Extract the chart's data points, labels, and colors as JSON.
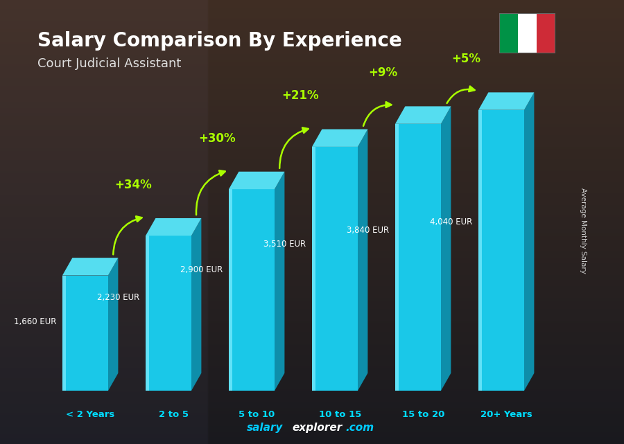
{
  "title": "Salary Comparison By Experience",
  "subtitle": "Court Judicial Assistant",
  "categories": [
    "< 2 Years",
    "2 to 5",
    "5 to 10",
    "10 to 15",
    "15 to 20",
    "20+ Years"
  ],
  "values": [
    1660,
    2230,
    2900,
    3510,
    3840,
    4040
  ],
  "labels": [
    "1,660 EUR",
    "2,230 EUR",
    "2,900 EUR",
    "3,510 EUR",
    "3,840 EUR",
    "4,040 EUR"
  ],
  "pct_changes": [
    "+34%",
    "+30%",
    "+21%",
    "+9%",
    "+5%"
  ],
  "bar_color_face": "#1ac8e8",
  "bar_color_side": "#0e8eaa",
  "bar_color_top": "#55ddf0",
  "bar_highlight": "#80eeff",
  "ylabel": "Average Monthly Salary",
  "title_color": "#ffffff",
  "subtitle_color": "#e0e0e0",
  "label_color": "#ffffff",
  "pct_color": "#aaff00",
  "cat_color": "#00ddff",
  "bg_top": "#1a2030",
  "bg_bottom": "#3a2a1a",
  "footer_salary_color": "#00ccff",
  "footer_explorer_color": "#ffffff",
  "footer_com_color": "#00ccff",
  "ylim_max": 4600
}
